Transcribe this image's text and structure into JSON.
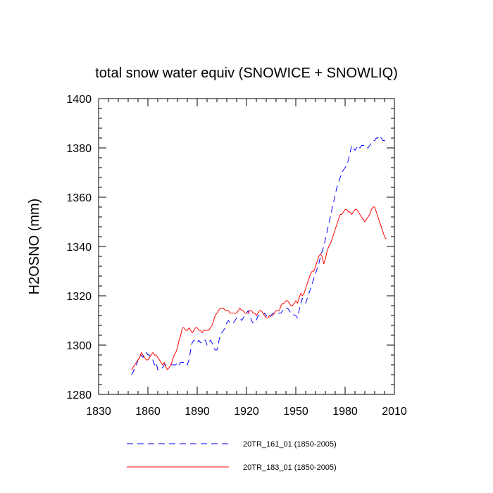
{
  "chart_data": {
    "type": "line",
    "title": "total snow water equiv (SNOWICE + SNOWLIQ)",
    "xlabel": "",
    "ylabel": "H2OSNO  (mm)",
    "xlim": [
      1830,
      2010
    ],
    "ylim": [
      1280,
      1400
    ],
    "xticks": [
      1830,
      1860,
      1890,
      1920,
      1950,
      1980,
      2010
    ],
    "yticks": [
      1280,
      1300,
      1320,
      1340,
      1360,
      1380,
      1400
    ],
    "legend_position": "bottom",
    "series": [
      {
        "name": "20TR_161_01 (1850-2005)",
        "color": "#0000ff",
        "style": "dashed",
        "x": [
          1850,
          1851,
          1852,
          1853,
          1854,
          1855,
          1856,
          1857,
          1858,
          1859,
          1860,
          1861,
          1862,
          1863,
          1864,
          1865,
          1866,
          1867,
          1868,
          1869,
          1870,
          1871,
          1872,
          1873,
          1874,
          1875,
          1876,
          1877,
          1878,
          1879,
          1880,
          1881,
          1882,
          1883,
          1884,
          1885,
          1886,
          1887,
          1888,
          1889,
          1890,
          1891,
          1892,
          1893,
          1894,
          1895,
          1896,
          1897,
          1898,
          1899,
          1900,
          1901,
          1902,
          1903,
          1904,
          1905,
          1906,
          1907,
          1908,
          1909,
          1910,
          1911,
          1912,
          1913,
          1914,
          1915,
          1916,
          1917,
          1918,
          1919,
          1920,
          1921,
          1922,
          1923,
          1924,
          1925,
          1926,
          1927,
          1928,
          1929,
          1930,
          1931,
          1932,
          1933,
          1934,
          1935,
          1936,
          1937,
          1938,
          1939,
          1940,
          1941,
          1942,
          1943,
          1944,
          1945,
          1946,
          1947,
          1948,
          1949,
          1950,
          1951,
          1952,
          1953,
          1954,
          1955,
          1956,
          1957,
          1958,
          1959,
          1960,
          1961,
          1962,
          1963,
          1964,
          1965,
          1966,
          1967,
          1968,
          1969,
          1970,
          1971,
          1972,
          1973,
          1974,
          1975,
          1976,
          1977,
          1978,
          1979,
          1980,
          1981,
          1982,
          1983,
          1984,
          1985,
          1986,
          1987,
          1988,
          1989,
          1990,
          1991,
          1992,
          1993,
          1994,
          1995,
          1996,
          1997,
          1998,
          1999,
          2000,
          2001,
          2002,
          2003,
          2004,
          2005
        ],
        "y": [
          1288,
          1289,
          1291,
          1292,
          1294,
          1295,
          1296,
          1295,
          1297,
          1297,
          1296,
          1296,
          1295,
          1294,
          1292,
          1293,
          1290,
          1290,
          1290,
          1291,
          1292,
          1292,
          1292,
          1292,
          1292,
          1292,
          1292,
          1292,
          1293,
          1292,
          1293,
          1293,
          1293,
          1292,
          1292,
          1294,
          1298,
          1301,
          1302,
          1302,
          1301,
          1302,
          1301,
          1301,
          1302,
          1302,
          1300,
          1301,
          1302,
          1301,
          1299,
          1298,
          1298,
          1301,
          1304,
          1305,
          1306,
          1307,
          1309,
          1310,
          1309,
          1309,
          1309,
          1310,
          1311,
          1311,
          1311,
          1310,
          1311,
          1312,
          1313,
          1314,
          1312,
          1310,
          1309,
          1309,
          1310,
          1312,
          1312,
          1312,
          1312,
          1313,
          1312,
          1311,
          1311,
          1312,
          1313,
          1313,
          1313,
          1313,
          1313,
          1313,
          1314,
          1315,
          1315,
          1315,
          1314,
          1313,
          1313,
          1312,
          1312,
          1311,
          1314,
          1317,
          1319,
          1318,
          1317,
          1319,
          1321,
          1323,
          1325,
          1327,
          1329,
          1331,
          1333,
          1336,
          1338,
          1340,
          1343,
          1346,
          1349,
          1352,
          1355,
          1358,
          1361,
          1364,
          1366,
          1368,
          1370,
          1371,
          1372,
          1373,
          1375,
          1378,
          1381,
          1380,
          1379,
          1380,
          1381,
          1380,
          1381,
          1381,
          1381,
          1380,
          1380,
          1381,
          1382,
          1383,
          1383,
          1384,
          1384,
          1385,
          1384,
          1383,
          1383,
          1381
        ]
      },
      {
        "name": "20TR_183_01 (1850-2005)",
        "color": "#ff0000",
        "style": "solid",
        "x": [
          1850,
          1851,
          1852,
          1853,
          1854,
          1855,
          1856,
          1857,
          1858,
          1859,
          1860,
          1861,
          1862,
          1863,
          1864,
          1865,
          1866,
          1867,
          1868,
          1869,
          1870,
          1871,
          1872,
          1873,
          1874,
          1875,
          1876,
          1877,
          1878,
          1879,
          1880,
          1881,
          1882,
          1883,
          1884,
          1885,
          1886,
          1887,
          1888,
          1889,
          1890,
          1891,
          1892,
          1893,
          1894,
          1895,
          1896,
          1897,
          1898,
          1899,
          1900,
          1901,
          1902,
          1903,
          1904,
          1905,
          1906,
          1907,
          1908,
          1909,
          1910,
          1911,
          1912,
          1913,
          1914,
          1915,
          1916,
          1917,
          1918,
          1919,
          1920,
          1921,
          1922,
          1923,
          1924,
          1925,
          1926,
          1927,
          1928,
          1929,
          1930,
          1931,
          1932,
          1933,
          1934,
          1935,
          1936,
          1937,
          1938,
          1939,
          1940,
          1941,
          1942,
          1943,
          1944,
          1945,
          1946,
          1947,
          1948,
          1949,
          1950,
          1951,
          1952,
          1953,
          1954,
          1955,
          1956,
          1957,
          1958,
          1959,
          1960,
          1961,
          1962,
          1963,
          1964,
          1965,
          1966,
          1967,
          1968,
          1969,
          1970,
          1971,
          1972,
          1973,
          1974,
          1975,
          1976,
          1977,
          1978,
          1979,
          1980,
          1981,
          1982,
          1983,
          1984,
          1985,
          1986,
          1987,
          1988,
          1989,
          1990,
          1991,
          1992,
          1993,
          1994,
          1995,
          1996,
          1997,
          1998,
          1999,
          2000,
          2001,
          2002,
          2003,
          2004,
          2005
        ],
        "y": [
          1290,
          1291,
          1292,
          1293,
          1294,
          1295,
          1297,
          1296,
          1295,
          1294,
          1294,
          1295,
          1296,
          1297,
          1296,
          1296,
          1295,
          1294,
          1293,
          1292,
          1293,
          1291,
          1290,
          1291,
          1292,
          1294,
          1296,
          1297,
          1299,
          1302,
          1304,
          1307,
          1307,
          1306,
          1306,
          1307,
          1306,
          1305,
          1306,
          1307,
          1307,
          1306,
          1306,
          1305,
          1306,
          1306,
          1306,
          1306,
          1307,
          1308,
          1310,
          1312,
          1313,
          1314,
          1315,
          1315,
          1315,
          1314,
          1314,
          1314,
          1313,
          1313,
          1313,
          1313,
          1313,
          1314,
          1315,
          1314,
          1314,
          1313,
          1313,
          1313,
          1314,
          1314,
          1313,
          1313,
          1312,
          1313,
          1314,
          1314,
          1313,
          1312,
          1311,
          1311,
          1312,
          1312,
          1312,
          1313,
          1314,
          1314,
          1314,
          1316,
          1317,
          1317,
          1318,
          1318,
          1317,
          1316,
          1316,
          1317,
          1318,
          1317,
          1319,
          1321,
          1320,
          1321,
          1323,
          1325,
          1327,
          1329,
          1330,
          1330,
          1332,
          1334,
          1336,
          1337,
          1336,
          1333,
          1335,
          1338,
          1340,
          1341,
          1343,
          1345,
          1347,
          1349,
          1351,
          1353,
          1353,
          1354,
          1355,
          1355,
          1354,
          1354,
          1353,
          1354,
          1355,
          1355,
          1354,
          1353,
          1352,
          1351,
          1350,
          1351,
          1352,
          1353,
          1355,
          1356,
          1356,
          1354,
          1352,
          1350,
          1348,
          1346,
          1344,
          1343
        ]
      }
    ]
  }
}
